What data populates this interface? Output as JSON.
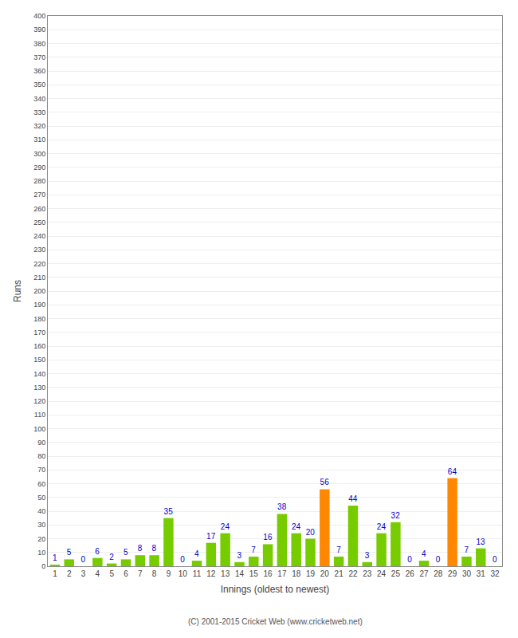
{
  "chart_data": {
    "type": "bar",
    "xlabel": "Innings (oldest to newest)",
    "ylabel": "Runs",
    "categories": [
      "1",
      "2",
      "3",
      "4",
      "5",
      "6",
      "7",
      "8",
      "9",
      "10",
      "11",
      "12",
      "13",
      "14",
      "15",
      "16",
      "17",
      "18",
      "19",
      "20",
      "21",
      "22",
      "23",
      "24",
      "25",
      "26",
      "27",
      "28",
      "29",
      "30",
      "31",
      "32"
    ],
    "values": [
      1,
      5,
      0,
      6,
      2,
      5,
      8,
      8,
      35,
      0,
      4,
      17,
      24,
      3,
      7,
      16,
      38,
      24,
      20,
      56,
      7,
      44,
      3,
      24,
      32,
      0,
      4,
      0,
      64,
      7,
      13,
      0
    ],
    "colors": [
      "#77cc00",
      "#77cc00",
      "#77cc00",
      "#77cc00",
      "#77cc00",
      "#77cc00",
      "#77cc00",
      "#77cc00",
      "#77cc00",
      "#77cc00",
      "#77cc00",
      "#77cc00",
      "#77cc00",
      "#77cc00",
      "#77cc00",
      "#77cc00",
      "#77cc00",
      "#77cc00",
      "#77cc00",
      "#ff8800",
      "#77cc00",
      "#77cc00",
      "#77cc00",
      "#77cc00",
      "#77cc00",
      "#77cc00",
      "#77cc00",
      "#77cc00",
      "#ff8800",
      "#77cc00",
      "#77cc00",
      "#77cc00"
    ],
    "ylim": [
      0,
      400
    ],
    "yticks": [
      0,
      10,
      20,
      30,
      40,
      50,
      60,
      70,
      80,
      90,
      100,
      110,
      120,
      130,
      140,
      150,
      160,
      170,
      180,
      190,
      200,
      210,
      220,
      230,
      240,
      250,
      260,
      270,
      280,
      290,
      300,
      310,
      320,
      330,
      340,
      350,
      360,
      370,
      380,
      390,
      400
    ],
    "grid": true,
    "data_labels": true,
    "annotations": [
      "(C) 2001-2015 Cricket Web (www.cricketweb.net)"
    ]
  }
}
